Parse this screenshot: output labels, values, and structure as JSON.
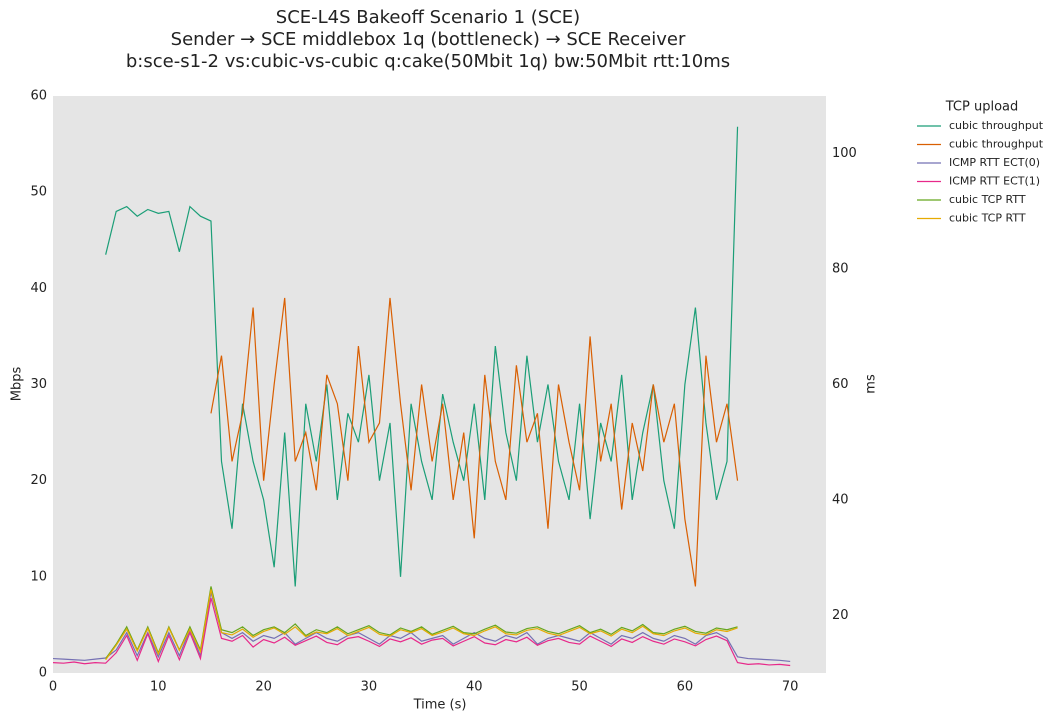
{
  "chart_data": {
    "type": "line",
    "title": "SCE-L4S Bakeoff Scenario 1 (SCE)",
    "subtitle": [
      "Sender → SCE middlebox 1q (bottleneck) → SCE Receiver",
      "b:sce-s1-2 vs:cubic-vs-cubic q:cake(50Mbit 1q) bw:50Mbit rtt:10ms"
    ],
    "xlabel": "Time (s)",
    "ylabel": "Mbps",
    "y2label": "ms",
    "legend_title": "TCP upload",
    "legend": "right",
    "grid": false,
    "xlim": [
      0,
      73.4
    ],
    "xticks": [
      0,
      10,
      20,
      30,
      40,
      50,
      60,
      70
    ],
    "ylim": [
      0,
      60
    ],
    "yticks": [
      0,
      10,
      20,
      30,
      40,
      50,
      60
    ],
    "y2lim": [
      10,
      110
    ],
    "y2ticks": [
      20,
      40,
      60,
      80,
      100
    ],
    "x": [
      0,
      1,
      2,
      3,
      4,
      5,
      6,
      7,
      8,
      9,
      10,
      11,
      12,
      13,
      14,
      15,
      16,
      17,
      18,
      19,
      20,
      21,
      22,
      23,
      24,
      25,
      26,
      27,
      28,
      29,
      30,
      31,
      32,
      33,
      34,
      35,
      36,
      37,
      38,
      39,
      40,
      41,
      42,
      43,
      44,
      45,
      46,
      47,
      48,
      49,
      50,
      51,
      52,
      53,
      54,
      55,
      56,
      57,
      58,
      59,
      60,
      61,
      62,
      63,
      64,
      65,
      66,
      67,
      68,
      69,
      70
    ],
    "series": [
      {
        "name": "cubic throughput",
        "color": "#1b9e77",
        "axis": "y",
        "values": [
          null,
          null,
          null,
          null,
          null,
          43.5,
          48,
          48.5,
          47.5,
          48.2,
          47.8,
          48,
          43.8,
          48.5,
          47.5,
          47,
          22,
          15,
          28,
          22,
          18,
          11,
          25,
          9,
          28,
          22,
          30,
          18,
          27,
          24,
          31,
          20,
          26,
          10,
          28,
          22,
          18,
          29,
          24,
          20,
          28,
          18,
          34,
          25,
          20,
          33,
          24,
          30,
          22,
          18,
          28,
          16,
          26,
          22,
          31,
          18,
          25,
          30,
          20,
          15,
          30,
          38,
          26,
          18,
          22,
          56.8,
          null,
          null,
          null,
          null,
          null
        ]
      },
      {
        "name": "cubic throughput",
        "color": "#d95f02",
        "axis": "y",
        "values": [
          null,
          null,
          null,
          null,
          null,
          null,
          null,
          null,
          null,
          null,
          null,
          null,
          null,
          null,
          null,
          27,
          33,
          22,
          27,
          38,
          20,
          30,
          39,
          22,
          25,
          19,
          31,
          28,
          20,
          34,
          24,
          26,
          39,
          28,
          19,
          30,
          22,
          28,
          18,
          25,
          14,
          31,
          22,
          18,
          32,
          24,
          27,
          15,
          30,
          24,
          19,
          35,
          22,
          28,
          17,
          26,
          21,
          30,
          24,
          28,
          16,
          9,
          33,
          24,
          28,
          20,
          null,
          null,
          null,
          null,
          null
        ]
      },
      {
        "name": "ICMP RTT ECT(0)",
        "color": "#7570b3",
        "axis": "y2",
        "values": [
          12.5,
          12.4,
          12.3,
          12.2,
          12.4,
          12.6,
          14,
          17,
          13,
          17,
          12.8,
          17,
          13,
          17.5,
          13,
          24,
          17,
          16,
          17,
          15.5,
          16.5,
          16,
          17,
          15,
          16,
          17,
          16,
          15.5,
          16.5,
          17,
          16,
          15,
          16.5,
          16,
          17,
          15.5,
          16,
          16.5,
          15,
          16,
          17,
          16,
          15.5,
          16.5,
          16,
          17,
          15,
          16,
          16.5,
          16,
          15.5,
          17,
          16,
          15,
          16.5,
          16,
          17,
          16,
          15.5,
          16.5,
          16,
          15,
          16.5,
          17,
          16,
          12.8,
          12.5,
          12.4,
          12.3,
          12.2,
          12
        ]
      },
      {
        "name": "ICMP RTT ECT(1)",
        "color": "#e7298a",
        "axis": "y2",
        "values": [
          11.8,
          11.7,
          11.9,
          11.6,
          11.8,
          11.7,
          13.5,
          16.5,
          12.2,
          16.8,
          12,
          16.5,
          12.3,
          17,
          12.5,
          23,
          16,
          15.5,
          16.5,
          14.5,
          15.8,
          15.2,
          16.2,
          14.8,
          15.6,
          16.4,
          15.3,
          14.9,
          16,
          16.3,
          15.5,
          14.6,
          15.9,
          15.4,
          16.1,
          15,
          15.7,
          16,
          14.7,
          15.5,
          16.3,
          15.2,
          14.9,
          15.8,
          15.4,
          16.2,
          14.8,
          15.6,
          16,
          15.3,
          15,
          16.4,
          15.5,
          14.6,
          15.9,
          15.3,
          16.3,
          15.5,
          15,
          15.9,
          15.4,
          14.7,
          15.8,
          16.4,
          15.6,
          11.8,
          11.5,
          11.6,
          11.4,
          11.5,
          11.3
        ]
      },
      {
        "name": "cubic TCP RTT",
        "color": "#66a61e",
        "axis": "y2",
        "values": [
          null,
          null,
          null,
          null,
          null,
          12.5,
          15,
          18,
          14,
          18,
          13.5,
          18,
          14,
          18,
          14,
          25,
          17.5,
          17,
          18,
          16.5,
          17.5,
          18,
          17,
          18.5,
          16.5,
          17.5,
          17,
          18,
          16.8,
          17.5,
          18.2,
          17,
          16.6,
          17.8,
          17.2,
          18,
          16.7,
          17.4,
          18.1,
          17,
          16.8,
          17.6,
          18.3,
          17.1,
          16.9,
          17.7,
          18,
          17.2,
          16.8,
          17.5,
          18.2,
          17,
          17.6,
          16.7,
          17.9,
          17.3,
          18.4,
          17,
          16.8,
          17.6,
          18.1,
          17.2,
          16.9,
          17.8,
          17.5,
          18,
          null,
          null,
          null,
          null,
          null
        ]
      },
      {
        "name": "cubic TCP RTT",
        "color": "#e6ab02",
        "axis": "y2",
        "values": [
          null,
          null,
          null,
          null,
          null,
          12.3,
          14.8,
          17.6,
          13.8,
          17.7,
          13.3,
          17.8,
          13.9,
          17.6,
          13.7,
          24.5,
          17,
          16.6,
          17.6,
          16.2,
          17.2,
          17.8,
          16.7,
          18,
          16.3,
          17.1,
          16.8,
          17.7,
          16.5,
          17.2,
          17.9,
          16.7,
          16.4,
          17.5,
          17,
          17.7,
          16.5,
          17.1,
          17.8,
          16.8,
          16.5,
          17.3,
          18,
          16.8,
          16.6,
          17.4,
          17.7,
          16.9,
          16.5,
          17.2,
          17.9,
          16.8,
          17.3,
          16.4,
          17.6,
          17,
          18.1,
          16.8,
          16.5,
          17.3,
          17.8,
          16.9,
          16.6,
          17.5,
          17.2,
          17.8,
          null,
          null,
          null,
          null,
          null
        ]
      }
    ]
  }
}
